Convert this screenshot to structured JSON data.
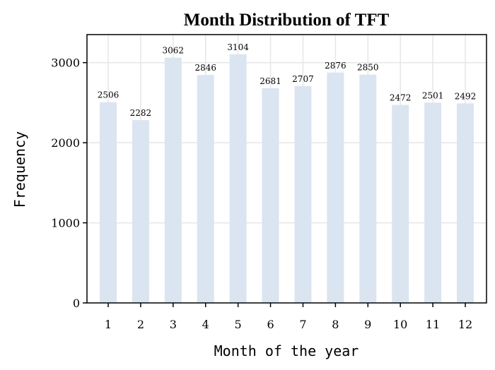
{
  "chart_data": {
    "type": "bar",
    "title": "Month Distribution of TFT",
    "xlabel": "Month of the year",
    "ylabel": "Frequency",
    "categories": [
      "1",
      "2",
      "3",
      "4",
      "5",
      "6",
      "7",
      "8",
      "9",
      "10",
      "11",
      "12"
    ],
    "values": [
      2506,
      2282,
      3062,
      2846,
      3104,
      2681,
      2707,
      2876,
      2850,
      2472,
      2501,
      2492
    ],
    "ylim": [
      0,
      3350
    ],
    "yticks": [
      0,
      1000,
      2000,
      3000
    ],
    "grid": true,
    "legend": "none",
    "bar_color": "#dae5f1",
    "grid_color": "#e6e6e6"
  }
}
